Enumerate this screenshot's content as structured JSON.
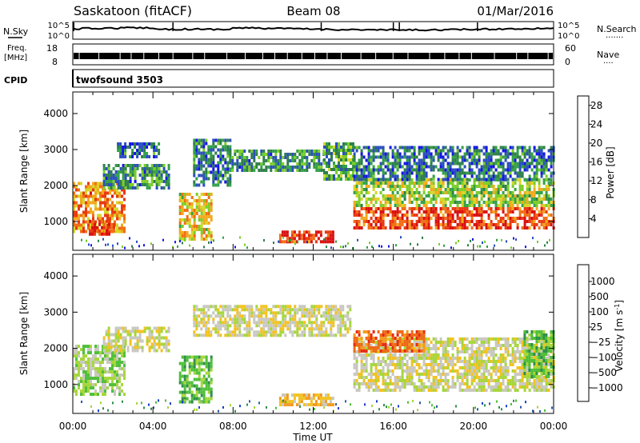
{
  "header": {
    "station": "Saskatoon (fitACF)",
    "beam": "Beam 08",
    "date": "01/Mar/2016"
  },
  "strips": {
    "nsky": {
      "label": "N.Sky",
      "tick_top": "10^5",
      "tick_bottom": "10^0",
      "right_label": "N.Search",
      "right_tick_top": "10^5",
      "right_tick_bottom": "10^0",
      "right_legend_dots": "·······"
    },
    "freq": {
      "label_line1": "Freq.",
      "label_line2": "[MHz]",
      "tick_top": "18",
      "tick_bottom": "8",
      "right_label": "Nave",
      "right_tick_top": "60",
      "right_tick_bottom": "0",
      "right_legend_dots": "····"
    },
    "cpid": {
      "label": "CPID",
      "value": "twofsound 3503"
    }
  },
  "x_axis": {
    "label": "Time UT",
    "ticks": [
      "00:00",
      "04:00",
      "08:00",
      "12:00",
      "16:00",
      "20:00",
      "00:00"
    ],
    "range_hours": [
      0,
      24
    ]
  },
  "chart_data": [
    {
      "type": "heatmap",
      "quantity": "Power",
      "ylabel": "Slant Range [km]",
      "yticks": [
        "1000",
        "2000",
        "3000",
        "4000"
      ],
      "ylim": [
        200,
        4600
      ],
      "colorbar": {
        "label": "Power [dB]",
        "ticks": [
          "4",
          "8",
          "12",
          "16",
          "20",
          "24",
          "28"
        ],
        "range": [
          0,
          30
        ],
        "colors": [
          "#1515e6",
          "#2b4fbf",
          "#2f7f4a",
          "#33a04a",
          "#7ccd2a",
          "#d6d62a",
          "#f2a91e",
          "#f06e16",
          "#e83a12",
          "#d91010"
        ]
      },
      "regions": [
        {
          "t0": 0.0,
          "t1": 2.6,
          "r0": 700,
          "r1": 2100,
          "level": 22
        },
        {
          "t0": 0.8,
          "t1": 2.0,
          "r0": 650,
          "r1": 1050,
          "level": 28
        },
        {
          "t0": 1.5,
          "t1": 4.8,
          "r0": 1900,
          "r1": 2600,
          "level": 8
        },
        {
          "t0": 2.2,
          "t1": 4.3,
          "r0": 2800,
          "r1": 3200,
          "level": 6
        },
        {
          "t0": 5.3,
          "t1": 6.9,
          "r0": 500,
          "r1": 1800,
          "level": 18
        },
        {
          "t0": 6.0,
          "t1": 7.8,
          "r0": 2000,
          "r1": 3300,
          "level": 6
        },
        {
          "t0": 7.8,
          "t1": 12.5,
          "r0": 2400,
          "r1": 3000,
          "level": 8
        },
        {
          "t0": 10.3,
          "t1": 13.0,
          "r0": 450,
          "r1": 750,
          "level": 28
        },
        {
          "t0": 12.5,
          "t1": 14.0,
          "r0": 2200,
          "r1": 3200,
          "level": 10
        },
        {
          "t0": 14.0,
          "t1": 24.0,
          "r0": 800,
          "r1": 1400,
          "level": 26
        },
        {
          "t0": 14.0,
          "t1": 24.0,
          "r0": 1400,
          "r1": 2200,
          "level": 14
        },
        {
          "t0": 14.0,
          "t1": 24.0,
          "r0": 2200,
          "r1": 3100,
          "level": 6
        }
      ]
    },
    {
      "type": "heatmap",
      "quantity": "Velocity",
      "ylabel": "Slant Range [km]",
      "yticks": [
        "1000",
        "2000",
        "3000",
        "4000"
      ],
      "ylim": [
        200,
        4600
      ],
      "colorbar": {
        "label": "Velocity [m s",
        "label_superscript": "-1",
        "label_close": "]",
        "ticks": [
          "1000",
          "500",
          "100",
          "25",
          "−25",
          "−100",
          "−500",
          "−1000"
        ],
        "colors": [
          "#1a3fd0",
          "#2a5aa8",
          "#2f8f4a",
          "#4fbf3a",
          "#a6d63a",
          "#c8c8c0",
          "#f2c21e",
          "#f29a1e",
          "#ee6a16",
          "#e62a12",
          "#d21010"
        ]
      },
      "regions": [
        {
          "t0": 0.0,
          "t1": 2.6,
          "r0": 700,
          "r1": 2100,
          "class": 4
        },
        {
          "t0": 1.5,
          "t1": 4.8,
          "r0": 1900,
          "r1": 2600,
          "class": 5
        },
        {
          "t0": 5.3,
          "t1": 6.9,
          "r0": 500,
          "r1": 1800,
          "class": 3
        },
        {
          "t0": 6.0,
          "t1": 13.8,
          "r0": 2400,
          "r1": 3200,
          "class": 5
        },
        {
          "t0": 10.3,
          "t1": 13.0,
          "r0": 450,
          "r1": 750,
          "class": 6
        },
        {
          "t0": 14.0,
          "t1": 24.0,
          "r0": 800,
          "r1": 2300,
          "class": 5
        },
        {
          "t0": 14.0,
          "t1": 17.5,
          "r0": 1900,
          "r1": 2500,
          "class": 8
        },
        {
          "t0": 22.5,
          "t1": 24.0,
          "r0": 1200,
          "r1": 2500,
          "class": 3
        }
      ]
    }
  ]
}
